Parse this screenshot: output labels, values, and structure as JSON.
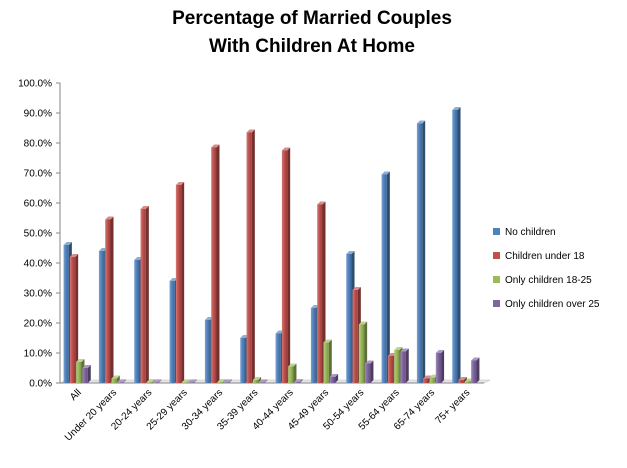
{
  "chart_data": {
    "type": "bar",
    "title": [
      "Percentage of Married Couples",
      "With Children At Home"
    ],
    "xlabel": "",
    "ylabel": "",
    "ylim": [
      0,
      100
    ],
    "yticks": [
      "0.0%",
      "10.0%",
      "20.0%",
      "30.0%",
      "40.0%",
      "50.0%",
      "60.0%",
      "70.0%",
      "80.0%",
      "90.0%",
      "100.0%"
    ],
    "grid": false,
    "legend_position": "right",
    "categories": [
      "All",
      "Under 20 years",
      "20-24 years",
      "25-29 years",
      "30-34 years",
      "35-39 years",
      "40-44 years",
      "45-49 years",
      "50-54 years",
      "55-64 years",
      "65-74 years",
      "75+ years"
    ],
    "series": [
      {
        "name": "No children",
        "color": "#4f81bd",
        "values": [
          46,
          44,
          41,
          34,
          21,
          15,
          16.5,
          25,
          43,
          69.5,
          86.5,
          91
        ]
      },
      {
        "name": "Children under 18",
        "color": "#c0504d",
        "values": [
          42,
          54.5,
          58,
          66,
          78.5,
          83.5,
          77.5,
          59.5,
          31,
          9,
          1.5,
          1
        ]
      },
      {
        "name": "Only children 18-25",
        "color": "#9bbb59",
        "values": [
          7,
          1.5,
          0.3,
          0.2,
          0.3,
          1,
          5.5,
          13.5,
          19.5,
          11,
          1.8,
          0.5
        ]
      },
      {
        "name": "Only children over 25",
        "color": "#8064a2",
        "values": [
          5,
          0.2,
          0.2,
          0.2,
          0.2,
          0.2,
          0.3,
          2,
          6.5,
          10.5,
          10,
          7.5
        ]
      }
    ]
  }
}
